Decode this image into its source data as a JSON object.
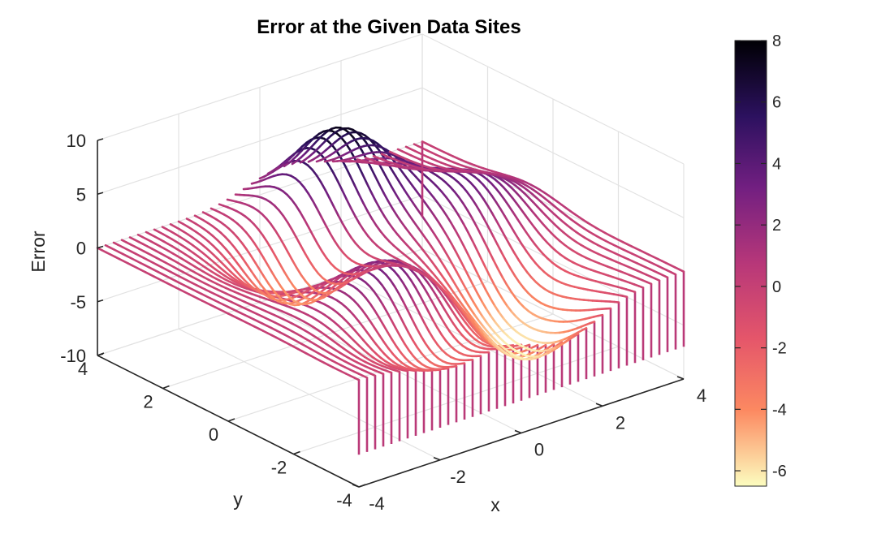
{
  "chart_data": {
    "type": "surface-waterfall-3d",
    "title": "Error at the Given Data Sites",
    "xlabel": "x",
    "ylabel": "y",
    "zlabel": "Error",
    "xlim": [
      -4,
      4
    ],
    "ylim": [
      -4,
      4
    ],
    "zlim": [
      -10,
      10
    ],
    "x_ticks": [
      "-4",
      "-2",
      "0",
      "2",
      "4"
    ],
    "y_ticks": [
      "-4",
      "-2",
      "0",
      "2",
      "4"
    ],
    "z_ticks": [
      "-10",
      "-5",
      "0",
      "5",
      "10"
    ],
    "grid": true,
    "colormap": "magma (reversed)",
    "colorbar": {
      "range": [
        -6.5,
        8
      ],
      "ticks": [
        "-6",
        "-4",
        "-2",
        "0",
        "2",
        "4",
        "6",
        "8"
      ],
      "stops": [
        "#fcfdbf",
        "#fc8961",
        "#e5566a",
        "#b73779",
        "#721f81",
        "#2c115f",
        "#000004"
      ]
    },
    "curtain_base": -7,
    "surface_features": [
      {
        "kind": "peak",
        "x": 0.6,
        "y": 2.4,
        "z": 8
      },
      {
        "kind": "peak",
        "x": 2.5,
        "y": 0.7,
        "z": 3.5
      },
      {
        "kind": "peak",
        "x": -1.2,
        "y": -1.6,
        "z": 4
      },
      {
        "kind": "trough",
        "x": -1.0,
        "y": 1.5,
        "z": -5.5
      },
      {
        "kind": "trough",
        "x": -1.6,
        "y": -3.0,
        "z": -3.5
      },
      {
        "kind": "trough",
        "x": 1.5,
        "y": -1.5,
        "z": -4.5
      },
      {
        "kind": "trough",
        "x": 1.0,
        "y": -3.0,
        "z": -5
      }
    ]
  }
}
